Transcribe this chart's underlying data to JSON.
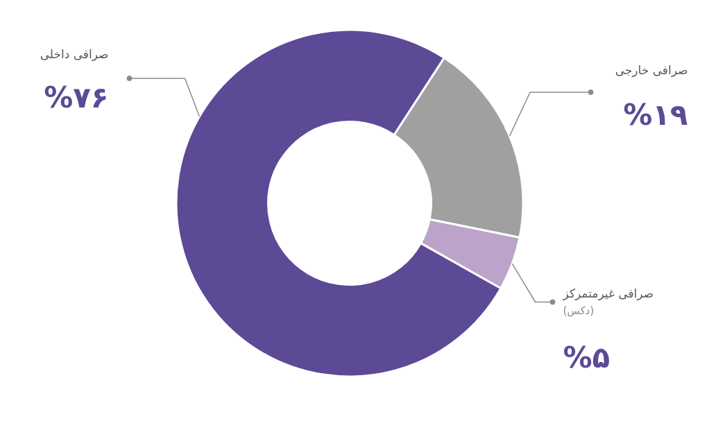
{
  "chart_data": {
    "type": "donut",
    "categories": [
      "صرافی خارجی",
      "صرافی غیرمتمرکز\n(دکس)",
      "صرافی داخلی"
    ],
    "values": [
      19,
      5,
      76
    ],
    "colors": [
      "#a0a0a0",
      "#bca3c9",
      "#5c4a96"
    ],
    "value_labels": [
      "%۱۹",
      "%۵",
      "%۷۶"
    ],
    "legend": false
  }
}
